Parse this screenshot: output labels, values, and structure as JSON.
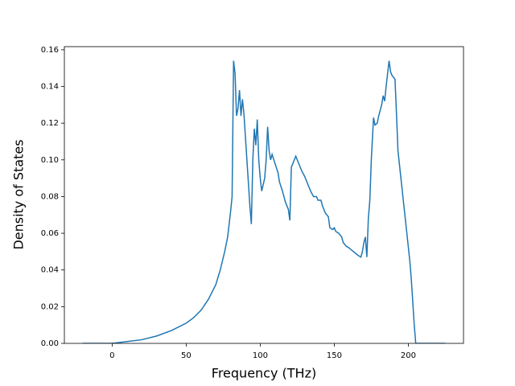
{
  "chart_data": {
    "type": "line",
    "xlabel": "Frequency (THz)",
    "ylabel": "Density of States",
    "x": [
      -20,
      0,
      10,
      20,
      30,
      40,
      50,
      55,
      60,
      65,
      70,
      73,
      76,
      78,
      80,
      81,
      82,
      83,
      84,
      85,
      86,
      87,
      88,
      89,
      91,
      93,
      94,
      95,
      96,
      97,
      98,
      99,
      100,
      101,
      103,
      104,
      105,
      106,
      107,
      108,
      110,
      112,
      113,
      115,
      117,
      119,
      120,
      121,
      123,
      124,
      126,
      128,
      130,
      132,
      134,
      136,
      138,
      139,
      141,
      142,
      144,
      146,
      147,
      149,
      150,
      151,
      153,
      155,
      156,
      158,
      160,
      163,
      166,
      168,
      169,
      170,
      171,
      172,
      173,
      174,
      175,
      176.5,
      177.5,
      179,
      180,
      182,
      183,
      184,
      185,
      187,
      188,
      189,
      191,
      192,
      193,
      195,
      197,
      199,
      201,
      202,
      204,
      205,
      225
    ],
    "series": [
      {
        "color": "#1f77b4",
        "values": [
          0,
          0,
          0.001,
          0.002,
          0.004,
          0.007,
          0.011,
          0.014,
          0.018,
          0.024,
          0.032,
          0.04,
          0.05,
          0.058,
          0.072,
          0.08,
          0.154,
          0.147,
          0.124,
          0.128,
          0.138,
          0.124,
          0.133,
          0.125,
          0.1,
          0.075,
          0.065,
          0.1,
          0.117,
          0.108,
          0.122,
          0.1,
          0.09,
          0.083,
          0.09,
          0.1,
          0.118,
          0.105,
          0.1,
          0.103,
          0.098,
          0.093,
          0.088,
          0.083,
          0.077,
          0.073,
          0.067,
          0.096,
          0.1,
          0.102,
          0.098,
          0.094,
          0.091,
          0.087,
          0.083,
          0.08,
          0.08,
          0.078,
          0.078,
          0.075,
          0.071,
          0.069,
          0.063,
          0.062,
          0.063,
          0.061,
          0.06,
          0.058,
          0.055,
          0.053,
          0.052,
          0.05,
          0.048,
          0.047,
          0.05,
          0.055,
          0.058,
          0.047,
          0.068,
          0.078,
          0.1,
          0.123,
          0.119,
          0.12,
          0.124,
          0.13,
          0.135,
          0.132,
          0.14,
          0.154,
          0.148,
          0.146,
          0.144,
          0.125,
          0.105,
          0.09,
          0.075,
          0.06,
          0.045,
          0.035,
          0.01,
          0,
          0
        ]
      }
    ],
    "xlim": [
      -32.25,
      237.25
    ],
    "ylim": [
      0,
      0.1617
    ],
    "xticks": [
      0,
      50,
      100,
      150,
      200
    ],
    "yticks": [
      {
        "value": 0,
        "label": "0.00"
      },
      {
        "value": 0.02,
        "label": "0.02"
      },
      {
        "value": 0.04,
        "label": "0.04"
      },
      {
        "value": 0.06,
        "label": "0.06"
      },
      {
        "value": 0.08,
        "label": "0.08"
      },
      {
        "value": 0.1,
        "label": "0.10"
      },
      {
        "value": 0.12,
        "label": "0.12"
      },
      {
        "value": 0.14,
        "label": "0.14"
      },
      {
        "value": 0.16,
        "label": "0.16"
      }
    ]
  }
}
